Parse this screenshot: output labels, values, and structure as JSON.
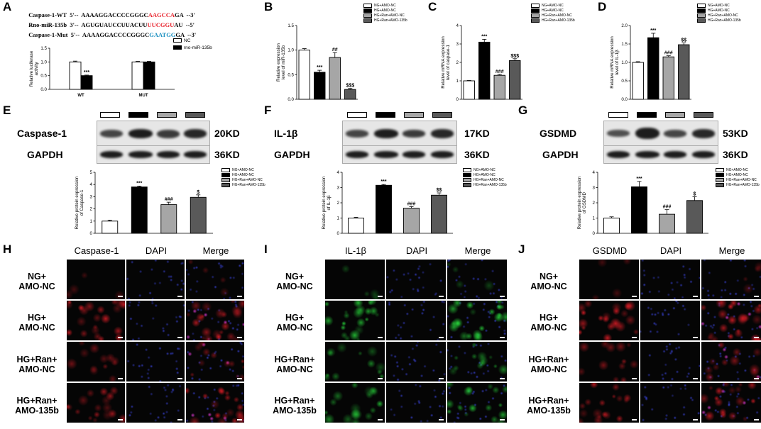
{
  "panel_labels": {
    "A": "A",
    "B": "B",
    "C": "C",
    "D": "D",
    "E": "E",
    "F": "F",
    "G": "G",
    "H": "H",
    "I": "I",
    "J": "J"
  },
  "sequences": {
    "wt": {
      "name": "Caspase-1-WT",
      "prefix": "5'--",
      "seq": "AAAAGGACCCCGGGC",
      "highlight": "AAGCCA",
      "tail": "GA",
      "end": "--3'"
    },
    "mir": {
      "name": "Rno-miR-135b",
      "prefix": "3'--",
      "seq": "AGUGUAUCCUUACUU",
      "highlight": "UUCGGU",
      "tail": "AU",
      "end": "--5'"
    },
    "mut": {
      "name": "Caspase-1-Mut",
      "prefix": "5'--",
      "seq": "AAAAGGACCCCGGGC",
      "highlight": "GAATGG",
      "tail": "GA",
      "end": "--3'"
    }
  },
  "legend_A": [
    "NC",
    "rno-miR-135b"
  ],
  "legend_4": [
    "NG+AMO-NC",
    "HG+AMO-NC",
    "HG+Ran+AMO-NC",
    "HG+Ran+AMO-135b"
  ],
  "colors": {
    "ng": "#ffffff",
    "hg": "#000000",
    "ran_nc": "#a6a6a6",
    "ran_135b": "#595959",
    "red_text": "#e8202a",
    "blue_text": "#1a8fc0"
  },
  "western": {
    "E": {
      "target": "Caspase-1",
      "mw": "20KD",
      "ref": "GAPDH",
      "ref_mw": "36KD"
    },
    "F": {
      "target": "IL-1β",
      "mw": "17KD",
      "ref": "GAPDH",
      "ref_mw": "36KD"
    },
    "G": {
      "target": "GSDMD",
      "mw": "53KD",
      "ref": "GAPDH",
      "ref_mw": "36KD"
    }
  },
  "if_panels": {
    "H": {
      "channels": [
        "Caspase-1",
        "DAPI",
        "Merge"
      ],
      "stain": "red"
    },
    "I": {
      "channels": [
        "IL-1β",
        "DAPI",
        "Merge"
      ],
      "stain": "green"
    },
    "J": {
      "channels": [
        "GSDMD",
        "DAPI",
        "Merge"
      ],
      "stain": "red"
    }
  },
  "conditions": [
    {
      "line1": "NG+",
      "line2": "AMO-NC",
      "level": 0.05
    },
    {
      "line1": "HG+",
      "line2": "AMO-NC",
      "level": 1.0
    },
    {
      "line1": "HG+Ran+",
      "line2": "AMO-NC",
      "level": 0.5
    },
    {
      "line1": "HG+Ran+",
      "line2": "AMO-135b",
      "level": 0.8
    }
  ],
  "chart_data": [
    {
      "id": "A",
      "type": "bar",
      "categories": [
        "WT",
        "MUT"
      ],
      "ylabel": "Relative luciferase activity",
      "ylim": [
        0,
        1.5
      ],
      "yticks": [
        0.0,
        0.5,
        1.0,
        1.5
      ],
      "series": [
        {
          "name": "NC",
          "color": "#ffffff",
          "values": [
            1.0,
            1.0
          ],
          "errors": [
            0.03,
            0.02
          ]
        },
        {
          "name": "rno-miR-135b",
          "color": "#000000",
          "values": [
            0.5,
            1.0
          ],
          "errors": [
            0.02,
            0.02
          ]
        }
      ],
      "annotations": [
        {
          "category": 0,
          "series": 1,
          "text": "***"
        }
      ]
    },
    {
      "id": "B",
      "type": "bar",
      "categories": [
        "NG+AMO-NC",
        "HG+AMO-NC",
        "HG+Ran+AMO-NC",
        "HG+Ran+AMO-135b"
      ],
      "ylabel": "Relative expression level of miR-135b",
      "ylim": [
        0,
        1.5
      ],
      "yticks": [
        0.0,
        0.5,
        1.0,
        1.5
      ],
      "values": [
        1.0,
        0.55,
        0.85,
        0.2
      ],
      "errors": [
        0.03,
        0.04,
        0.1,
        0.02
      ],
      "annotations": [
        "",
        "***",
        "##",
        "$$$"
      ]
    },
    {
      "id": "C",
      "type": "bar",
      "categories": [
        "NG+AMO-NC",
        "HG+AMO-NC",
        "HG+Ran+AMO-NC",
        "HG+Ran+AMO-135b"
      ],
      "ylabel": "Relative mRNA expression level of caspase-1",
      "ylim": [
        0,
        4
      ],
      "yticks": [
        0,
        1,
        2,
        3,
        4
      ],
      "values": [
        1.0,
        3.1,
        1.3,
        2.1
      ],
      "errors": [
        0.02,
        0.15,
        0.05,
        0.1
      ],
      "annotations": [
        "",
        "***",
        "###",
        "$$$"
      ]
    },
    {
      "id": "D",
      "type": "bar",
      "categories": [
        "NG+AMO-NC",
        "HG+AMO-NC",
        "HG+Ran+AMO-NC",
        "HG+Ran+AMO-135b"
      ],
      "ylabel": "Relative mRNA expression level of IL-1β",
      "ylim": [
        0,
        2.0
      ],
      "yticks": [
        0.0,
        0.5,
        1.0,
        1.5,
        2.0
      ],
      "values": [
        1.0,
        1.67,
        1.15,
        1.48
      ],
      "errors": [
        0.02,
        0.12,
        0.03,
        0.05
      ],
      "annotations": [
        "",
        "***",
        "###",
        "$$"
      ]
    },
    {
      "id": "E",
      "type": "bar",
      "categories": [
        "NG+AMO-NC",
        "HG+AMO-NC",
        "HG+Ran+AMO-NC",
        "HG+Ran+AMO-135b"
      ],
      "ylabel": "Relative protein expression of Caspase-1",
      "ylim": [
        0,
        5
      ],
      "yticks": [
        0,
        1,
        2,
        3,
        4,
        5
      ],
      "values": [
        1.0,
        3.8,
        2.35,
        2.95
      ],
      "errors": [
        0.08,
        0.07,
        0.2,
        0.2
      ],
      "annotations": [
        "",
        "***",
        "###",
        "$"
      ]
    },
    {
      "id": "F",
      "type": "bar",
      "categories": [
        "NG+AMO-NC",
        "HG+AMO-NC",
        "HG+Ran+AMO-NC",
        "HG+Ran+AMO-135b"
      ],
      "ylabel": "Relative protein expression of IL-1β",
      "ylim": [
        0,
        4
      ],
      "yticks": [
        0,
        1,
        2,
        3,
        4
      ],
      "values": [
        1.0,
        3.15,
        1.65,
        2.5
      ],
      "errors": [
        0.05,
        0.05,
        0.1,
        0.15
      ],
      "annotations": [
        "",
        "***",
        "###",
        "$$"
      ]
    },
    {
      "id": "G",
      "type": "bar",
      "categories": [
        "NG+AMO-NC",
        "HG+AMO-NC",
        "HG+Ran+AMO-NC",
        "HG+Ran+AMO-135b"
      ],
      "ylabel": "Relative protein expression of GSDMD",
      "ylim": [
        0,
        4
      ],
      "yticks": [
        0,
        1,
        2,
        3,
        4
      ],
      "values": [
        1.0,
        3.05,
        1.25,
        2.15
      ],
      "errors": [
        0.08,
        0.35,
        0.3,
        0.25
      ],
      "annotations": [
        "",
        "***",
        "###",
        "$"
      ]
    }
  ]
}
